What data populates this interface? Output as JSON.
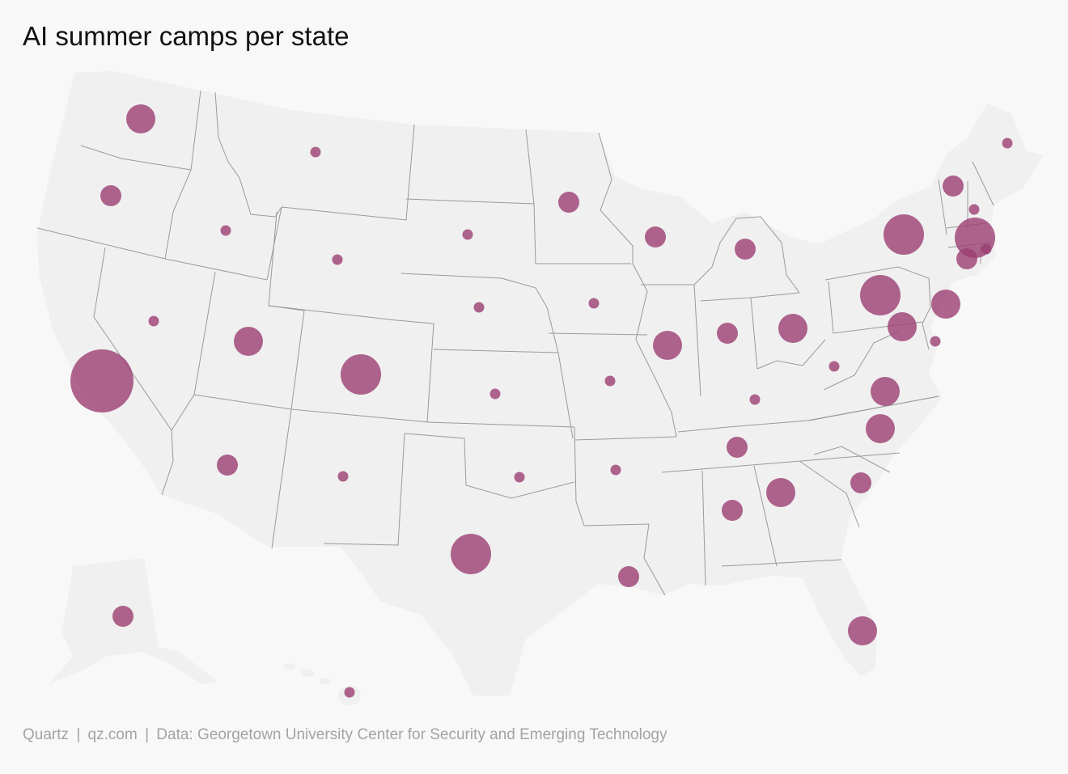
{
  "title": "AI summer camps per state",
  "footer": {
    "brand": "Quartz",
    "site": "qz.com",
    "source": "Data: Georgetown University Center for Security and Emerging Technology",
    "separator": "|"
  },
  "colors": {
    "background": "#f8f8f8",
    "land": "#f0f0f0",
    "border": "#999999",
    "bubble": "#9b3e72",
    "bubble_opacity": 0.8
  },
  "chart_data": {
    "type": "bubble-map",
    "title": "AI summer camps per state",
    "states": [
      {
        "state": "Washington",
        "size": "medium"
      },
      {
        "state": "Oregon",
        "size": "small"
      },
      {
        "state": "California",
        "size": "largest"
      },
      {
        "state": "Nevada",
        "size": "tiny"
      },
      {
        "state": "Idaho",
        "size": "tiny"
      },
      {
        "state": "Montana",
        "size": "tiny"
      },
      {
        "state": "Wyoming",
        "size": "tiny"
      },
      {
        "state": "Utah",
        "size": "medium"
      },
      {
        "state": "Colorado",
        "size": "large"
      },
      {
        "state": "Arizona",
        "size": "small"
      },
      {
        "state": "New Mexico",
        "size": "tiny"
      },
      {
        "state": "North Dakota",
        "size": "none"
      },
      {
        "state": "South Dakota",
        "size": "tiny"
      },
      {
        "state": "Nebraska",
        "size": "tiny"
      },
      {
        "state": "Kansas",
        "size": "tiny"
      },
      {
        "state": "Oklahoma",
        "size": "tiny"
      },
      {
        "state": "Texas",
        "size": "large"
      },
      {
        "state": "Minnesota",
        "size": "small"
      },
      {
        "state": "Iowa",
        "size": "tiny"
      },
      {
        "state": "Missouri",
        "size": "tiny"
      },
      {
        "state": "Arkansas",
        "size": "tiny"
      },
      {
        "state": "Louisiana",
        "size": "small"
      },
      {
        "state": "Wisconsin",
        "size": "small"
      },
      {
        "state": "Illinois",
        "size": "medium"
      },
      {
        "state": "Michigan",
        "size": "small"
      },
      {
        "state": "Indiana",
        "size": "small"
      },
      {
        "state": "Ohio",
        "size": "medium"
      },
      {
        "state": "Kentucky",
        "size": "tiny"
      },
      {
        "state": "Tennessee",
        "size": "small"
      },
      {
        "state": "Mississippi",
        "size": "none"
      },
      {
        "state": "Alabama",
        "size": "small"
      },
      {
        "state": "Georgia",
        "size": "medium"
      },
      {
        "state": "Florida",
        "size": "medium"
      },
      {
        "state": "South Carolina",
        "size": "small"
      },
      {
        "state": "North Carolina",
        "size": "medium"
      },
      {
        "state": "Virginia",
        "size": "medium"
      },
      {
        "state": "West Virginia",
        "size": "tiny"
      },
      {
        "state": "Pennsylvania",
        "size": "large"
      },
      {
        "state": "New York",
        "size": "large"
      },
      {
        "state": "New Jersey",
        "size": "medium"
      },
      {
        "state": "Maryland",
        "size": "medium"
      },
      {
        "state": "Delaware",
        "size": "tiny"
      },
      {
        "state": "Connecticut",
        "size": "small"
      },
      {
        "state": "Rhode Island",
        "size": "tiny"
      },
      {
        "state": "Massachusetts",
        "size": "large"
      },
      {
        "state": "Vermont",
        "size": "small"
      },
      {
        "state": "New Hampshire",
        "size": "tiny"
      },
      {
        "state": "Maine",
        "size": "tiny"
      },
      {
        "state": "Alaska",
        "size": "small"
      },
      {
        "state": "Hawaii",
        "size": "tiny"
      }
    ]
  }
}
